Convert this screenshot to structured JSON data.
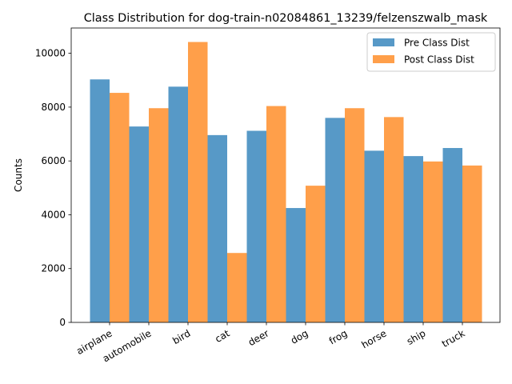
{
  "chart_data": {
    "type": "bar",
    "title": "Class Distribution for dog-train-n02084861_13239/felzenszwalb_mask",
    "xlabel": "",
    "ylabel": "Counts",
    "categories": [
      "airplane",
      "automobile",
      "bird",
      "cat",
      "deer",
      "dog",
      "frog",
      "horse",
      "ship",
      "truck"
    ],
    "series": [
      {
        "name": "Pre Class Dist",
        "color": "#1f77b4",
        "values": [
          9030,
          7280,
          8760,
          6960,
          7120,
          4250,
          7600,
          6380,
          6180,
          6480
        ]
      },
      {
        "name": "Post Class Dist",
        "color": "#ff7f0e",
        "values": [
          8530,
          7960,
          10420,
          2580,
          8040,
          5080,
          7960,
          7630,
          5980,
          5830
        ]
      }
    ],
    "ylim": [
      0,
      10940
    ],
    "yticks": [
      0,
      2000,
      4000,
      6000,
      8000,
      10000
    ],
    "legend": "top-right",
    "grid": false,
    "opacity": 0.75
  }
}
